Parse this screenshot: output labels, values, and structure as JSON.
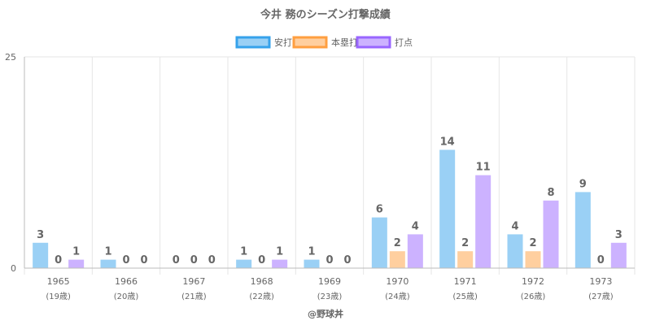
{
  "chart_data": {
    "type": "bar",
    "title": "今井 務のシーズン打撃成績",
    "categories": [
      "1965",
      "1966",
      "1967",
      "1968",
      "1969",
      "1970",
      "1971",
      "1972",
      "1973"
    ],
    "category_sublabels": [
      "(19歳)",
      "(20歳)",
      "(21歳)",
      "(22歳)",
      "(23歳)",
      "(24歳)",
      "(25歳)",
      "(26歳)",
      "(27歳)"
    ],
    "series": [
      {
        "name": "安打",
        "values": [
          3,
          1,
          0,
          1,
          1,
          6,
          14,
          4,
          9
        ],
        "fill": "#9ad0f5",
        "stroke": "#36a2eb"
      },
      {
        "name": "本塁打",
        "values": [
          0,
          0,
          0,
          0,
          0,
          2,
          2,
          2,
          0
        ],
        "fill": "#ffcf9f",
        "stroke": "#ff9f40"
      },
      {
        "name": "打点",
        "values": [
          1,
          0,
          0,
          1,
          0,
          4,
          11,
          8,
          3
        ],
        "fill": "#ccb2ff",
        "stroke": "#9966ff"
      }
    ],
    "ylim": [
      0,
      25
    ],
    "yticks": [
      "0",
      "25"
    ],
    "legend": "top-center",
    "grid": true,
    "xlabel": "",
    "ylabel": ""
  },
  "footer": "@野球丼"
}
